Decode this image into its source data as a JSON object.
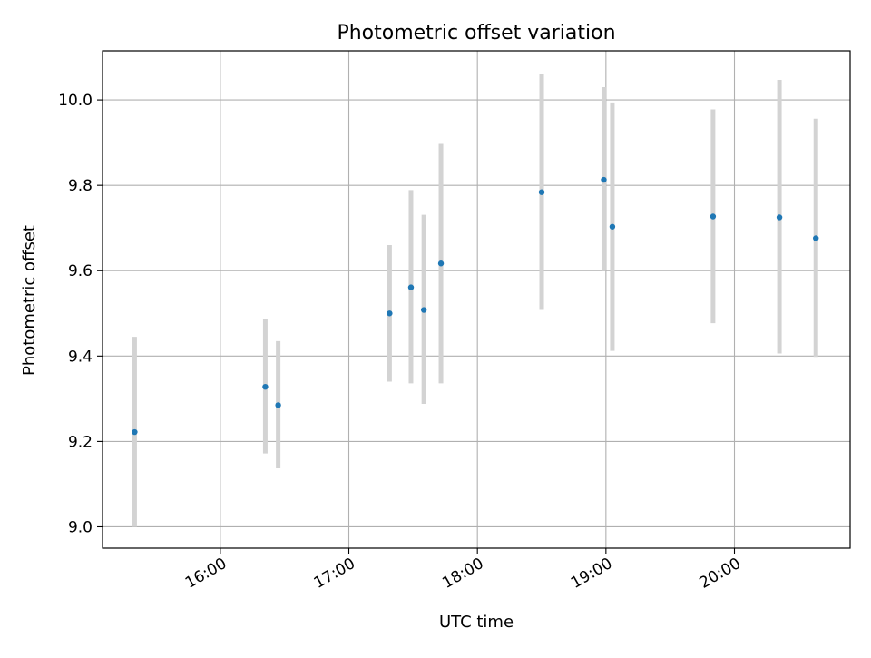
{
  "chart_data": {
    "type": "scatter",
    "title": "Photometric offset variation",
    "xlabel": "UTC time",
    "ylabel": "Photometric offset",
    "x_ticks": [
      "16:00",
      "17:00",
      "18:00",
      "19:00",
      "20:00"
    ],
    "y_ticks": [
      "9.0",
      "9.2",
      "9.4",
      "9.6",
      "9.8",
      "10.0"
    ],
    "xlim": [
      "15:05",
      "20:54"
    ],
    "ylim": [
      8.95,
      10.115
    ],
    "grid": true,
    "colors": {
      "point": "#1f77b4",
      "errorbar": "#d3d3d3",
      "grid": "#b0b0b0",
      "axes": "#000000"
    },
    "points": [
      {
        "x": "15:20",
        "y": 9.222,
        "y_low": 9.0,
        "y_high": 9.445
      },
      {
        "x": "16:21",
        "y": 9.328,
        "y_low": 9.172,
        "y_high": 9.487
      },
      {
        "x": "16:27",
        "y": 9.285,
        "y_low": 9.137,
        "y_high": 9.435
      },
      {
        "x": "17:19",
        "y": 9.5,
        "y_low": 9.34,
        "y_high": 9.66
      },
      {
        "x": "17:29",
        "y": 9.561,
        "y_low": 9.336,
        "y_high": 9.789
      },
      {
        "x": "17:35",
        "y": 9.508,
        "y_low": 9.288,
        "y_high": 9.731
      },
      {
        "x": "17:43",
        "y": 9.617,
        "y_low": 9.336,
        "y_high": 9.897
      },
      {
        "x": "18:30",
        "y": 9.784,
        "y_low": 9.508,
        "y_high": 10.061
      },
      {
        "x": "18:59",
        "y": 9.813,
        "y_low": 9.6,
        "y_high": 10.03
      },
      {
        "x": "19:03",
        "y": 9.703,
        "y_low": 9.412,
        "y_high": 9.994
      },
      {
        "x": "19:50",
        "y": 9.727,
        "y_low": 9.477,
        "y_high": 9.978
      },
      {
        "x": "20:21",
        "y": 9.725,
        "y_low": 9.406,
        "y_high": 10.047
      },
      {
        "x": "20:38",
        "y": 9.676,
        "y_low": 9.398,
        "y_high": 9.956
      }
    ]
  }
}
